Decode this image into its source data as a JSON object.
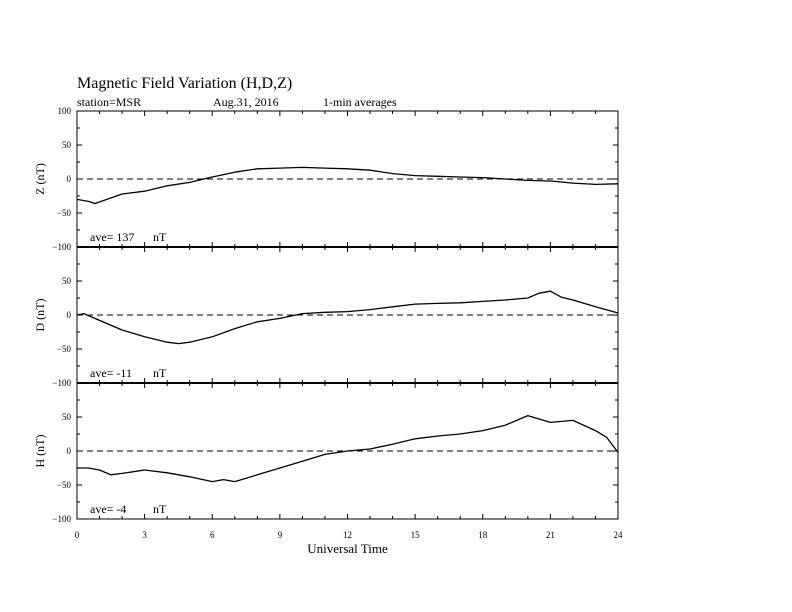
{
  "header": {
    "title": "Magnetic Field Variation (H,D,Z)",
    "station": "station=MSR",
    "date": "Aug.31, 2016",
    "averaging": "1-min averages"
  },
  "chart_data": {
    "type": "line",
    "xlabel": "Universal Time",
    "x_ticks": [
      "0",
      "3",
      "6",
      "9",
      "12",
      "15",
      "18",
      "21",
      "24"
    ],
    "xlim": [
      0,
      24
    ],
    "panels": [
      {
        "key": "z",
        "ylabel": "Z (nT)",
        "ylim": [
          -100,
          100
        ],
        "y_ticks": [
          "100",
          "50",
          "0",
          "−50",
          "−100"
        ],
        "ave_label": "ave= 137",
        "ave_unit": "nT",
        "baseline": 0,
        "x": [
          0,
          0.5,
          0.8,
          1.5,
          2.0,
          3.0,
          4.0,
          5.0,
          6.0,
          7.0,
          8.0,
          9.0,
          10.0,
          11.0,
          12.0,
          13.0,
          14.0,
          15.0,
          16.0,
          17.0,
          18.0,
          19.0,
          20.0,
          21.0,
          22.0,
          23.0,
          24.0
        ],
        "values": [
          -30,
          -33,
          -36,
          -28,
          -22,
          -18,
          -10,
          -5,
          3,
          10,
          15,
          16,
          17,
          16,
          15,
          13,
          8,
          5,
          4,
          3,
          2,
          0,
          -2,
          -3,
          -6,
          -8,
          -7
        ]
      },
      {
        "key": "d",
        "ylabel": "D (nT)",
        "ylim": [
          -100,
          100
        ],
        "y_ticks": [
          "",
          "50",
          "0",
          "−50",
          "−100"
        ],
        "ave_label": "ave= -11",
        "ave_unit": "nT",
        "baseline": 0,
        "x": [
          0,
          0.3,
          1.0,
          2.0,
          3.0,
          4.0,
          4.5,
          5.0,
          6.0,
          7.0,
          8.0,
          9.0,
          10.0,
          11.0,
          12.0,
          13.0,
          14.0,
          15.0,
          16.0,
          17.0,
          18.0,
          19.0,
          20.0,
          20.5,
          21.0,
          21.5,
          22.0,
          23.0,
          24.0
        ],
        "values": [
          0,
          2,
          -8,
          -22,
          -32,
          -40,
          -42,
          -40,
          -32,
          -20,
          -10,
          -5,
          2,
          4,
          5,
          8,
          12,
          16,
          17,
          18,
          20,
          22,
          25,
          32,
          35,
          26,
          22,
          12,
          3
        ]
      },
      {
        "key": "h",
        "ylabel": "H (nT)",
        "ylim": [
          -100,
          100
        ],
        "y_ticks": [
          "",
          "50",
          "0",
          "−50",
          "−100"
        ],
        "ave_label": "ave= -4",
        "ave_unit": "nT",
        "baseline": 0,
        "x": [
          0,
          0.5,
          1.0,
          1.5,
          2.0,
          3.0,
          4.0,
          5.0,
          6.0,
          6.5,
          7.0,
          7.5,
          8.0,
          9.0,
          10.0,
          11.0,
          12.0,
          13.0,
          14.0,
          15.0,
          16.0,
          17.0,
          18.0,
          19.0,
          19.5,
          20.0,
          21.0,
          22.0,
          23.0,
          23.5,
          24.0
        ],
        "values": [
          -25,
          -25,
          -28,
          -35,
          -33,
          -28,
          -32,
          -38,
          -45,
          -42,
          -45,
          -40,
          -35,
          -25,
          -15,
          -5,
          0,
          3,
          10,
          18,
          22,
          25,
          30,
          38,
          45,
          52,
          42,
          45,
          30,
          20,
          -2
        ]
      }
    ]
  }
}
